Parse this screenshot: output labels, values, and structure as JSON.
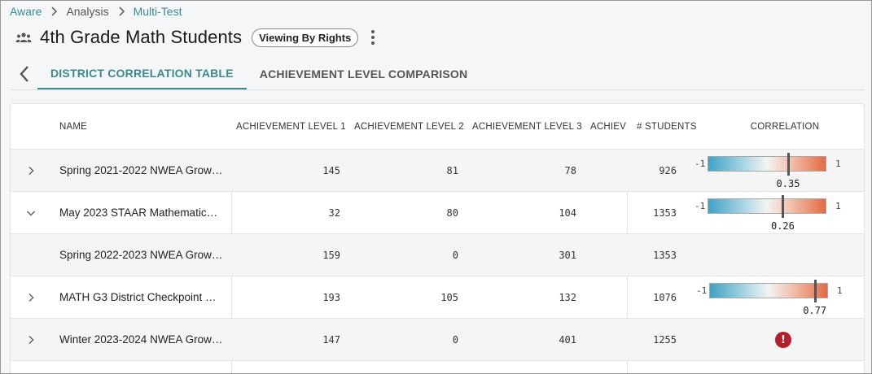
{
  "breadcrumb": {
    "items": [
      {
        "label": "Aware",
        "link": true
      },
      {
        "label": "Analysis",
        "link": false
      },
      {
        "label": "Multi-Test",
        "link": true
      }
    ]
  },
  "header": {
    "title": "4th Grade Math Students",
    "chip": "Viewing By Rights",
    "icon": "people-icon"
  },
  "tabs": [
    {
      "label": "DISTRICT CORRELATION TABLE",
      "active": true
    },
    {
      "label": "ACHIEVEMENT LEVEL COMPARISON",
      "active": false
    }
  ],
  "table": {
    "columns": {
      "name": "NAME",
      "level1": "ACHIEVEMENT LEVEL 1",
      "level2": "ACHIEVEMENT LEVEL 2",
      "level3": "ACHIEVEMENT LEVEL 3",
      "level4": "ACHIEVE",
      "students": "# STUDENTS",
      "correlation": "CORRELATION"
    },
    "correlation_scale": {
      "min": "-1",
      "max": "1"
    },
    "rows": [
      {
        "name": "Spring 2021-2022 NWEA Grow…",
        "expander": "chevron-right",
        "l1": "145",
        "l2": "81",
        "l3": "78",
        "students": "926",
        "corr": 0.35,
        "corr_label": "0.35",
        "status": "ok"
      },
      {
        "name": "May 2023 STAAR Mathematic…",
        "expander": "chevron-down",
        "l1": "32",
        "l2": "80",
        "l3": "104",
        "students": "1353",
        "corr": 0.26,
        "corr_label": "0.26",
        "status": "ok"
      },
      {
        "name": "Spring 2022-2023 NWEA Grow…",
        "expander": "none",
        "l1": "159",
        "l2": "0",
        "l3": "301",
        "students": "1353",
        "corr": null,
        "corr_label": "",
        "status": "none"
      },
      {
        "name": "MATH G3 District Checkpoint …",
        "expander": "chevron-right",
        "l1": "193",
        "l2": "105",
        "l3": "132",
        "students": "1076",
        "corr": 0.77,
        "corr_label": "0.77",
        "status": "ok"
      },
      {
        "name": "Winter 2023-2024 NWEA Grow…",
        "expander": "chevron-right",
        "l1": "147",
        "l2": "0",
        "l3": "401",
        "students": "1255",
        "corr": null,
        "corr_label": "",
        "status": "error",
        "status_icon": "alert-icon",
        "status_symbol": "!"
      }
    ]
  },
  "colors": {
    "accent": "#3a8a91",
    "alert": "#b3202c",
    "scale_negative": "#3fa2c4",
    "scale_positive": "#e26a45"
  }
}
